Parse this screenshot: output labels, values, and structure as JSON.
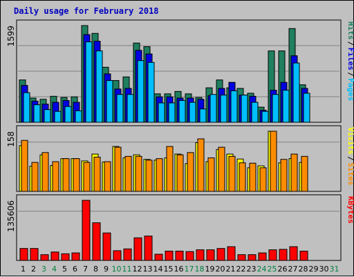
{
  "chart_data": {
    "type": "bar",
    "title": "Daily usage for February 2018",
    "days": [
      "1",
      "2",
      "3",
      "4",
      "5",
      "6",
      "7",
      "8",
      "9",
      "10",
      "11",
      "12",
      "13",
      "14",
      "15",
      "16",
      "17",
      "18",
      "19",
      "20",
      "21",
      "22",
      "23",
      "24",
      "25",
      "26",
      "27",
      "28",
      "29",
      "30",
      "31"
    ],
    "weekend_days": [
      "3",
      "4",
      "10",
      "11",
      "17",
      "18",
      "24",
      "25",
      "31"
    ],
    "colors": {
      "background": "#c0c0c0",
      "title": "#0000c0",
      "hits": "#1f7f5f",
      "files": "#0000e0",
      "pages": "#00bfff",
      "visits": "#ffff00",
      "sites": "#ff8c00",
      "kbytes": "#ff0000",
      "weekday_label": "#000000",
      "weekend_label": "#008040"
    },
    "panels": [
      {
        "name": "hits-files-pages",
        "ymax_label": "1599",
        "ymax": 1599,
        "legend": [
          {
            "text": "Hits",
            "color": "#1f7f5f"
          },
          {
            "text": "Files",
            "color": "#0000e0"
          },
          {
            "text": "Pages",
            "color": "#00bfff"
          }
        ],
        "series": [
          {
            "name": "Hits",
            "values": [
              700,
              400,
              380,
              430,
              410,
              420,
              1599,
              1470,
              910,
              690,
              750,
              1310,
              1250,
              470,
              470,
              510,
              470,
              410,
              570,
              700,
              570,
              560,
              480,
              250,
              1180,
              1180,
              1550,
              620,
              0,
              0,
              0
            ]
          },
          {
            "name": "Files",
            "values": [
              610,
              350,
              300,
              330,
              360,
              330,
              1450,
              1340,
              800,
              550,
              560,
              1190,
              1130,
              420,
              420,
              400,
              400,
              380,
              440,
              560,
              660,
              450,
              430,
              200,
              530,
              660,
              1100,
              560,
              0,
              0,
              0
            ]
          },
          {
            "name": "Pages",
            "values": [
              490,
              290,
              210,
              180,
              260,
              190,
              1330,
              1180,
              690,
              460,
              460,
              1020,
              990,
              320,
              320,
              360,
              330,
              220,
              460,
              450,
              520,
              450,
              330,
              180,
              460,
              530,
              980,
              480,
              0,
              0,
              0
            ]
          }
        ]
      },
      {
        "name": "visits-sites",
        "ymax_label": "158",
        "ymax": 158,
        "legend": [
          {
            "text": "Visits",
            "color": "#ffff00"
          },
          {
            "text": "Sites",
            "color": "#ff8c00"
          }
        ],
        "series": [
          {
            "name": "Visits",
            "values": [
              120,
              66,
              96,
              68,
              86,
              86,
              80,
              98,
              77,
              118,
              88,
              96,
              84,
              82,
              88,
              98,
              73,
              128,
              78,
              110,
              98,
              85,
              62,
              67,
              158,
              75,
              86,
              76,
              0,
              0,
              0
            ]
          },
          {
            "name": "Sites",
            "values": [
              134,
              76,
              102,
              78,
              86,
              86,
              76,
              90,
              78,
              116,
              92,
              92,
              82,
              86,
              118,
              96,
              102,
              138,
              88,
              116,
              92,
              75,
              74,
              62,
              158,
              84,
              98,
              92,
              0,
              0,
              0
            ]
          }
        ]
      },
      {
        "name": "kbytes",
        "ymax_label": "135606",
        "ymax": 135606,
        "legend": [
          {
            "text": "KBytes",
            "color": "#ff0000"
          }
        ],
        "series": [
          {
            "name": "KBytes",
            "values": [
              27000,
              27000,
              13000,
              19000,
              15000,
              17000,
              135606,
              85000,
              62000,
              22000,
              26000,
              51000,
              55000,
              14000,
              21000,
              21000,
              20000,
              24000,
              24000,
              27000,
              31000,
              13000,
              13000,
              17000,
              24000,
              25000,
              31000,
              21000,
              0,
              0,
              0
            ]
          }
        ]
      }
    ]
  }
}
